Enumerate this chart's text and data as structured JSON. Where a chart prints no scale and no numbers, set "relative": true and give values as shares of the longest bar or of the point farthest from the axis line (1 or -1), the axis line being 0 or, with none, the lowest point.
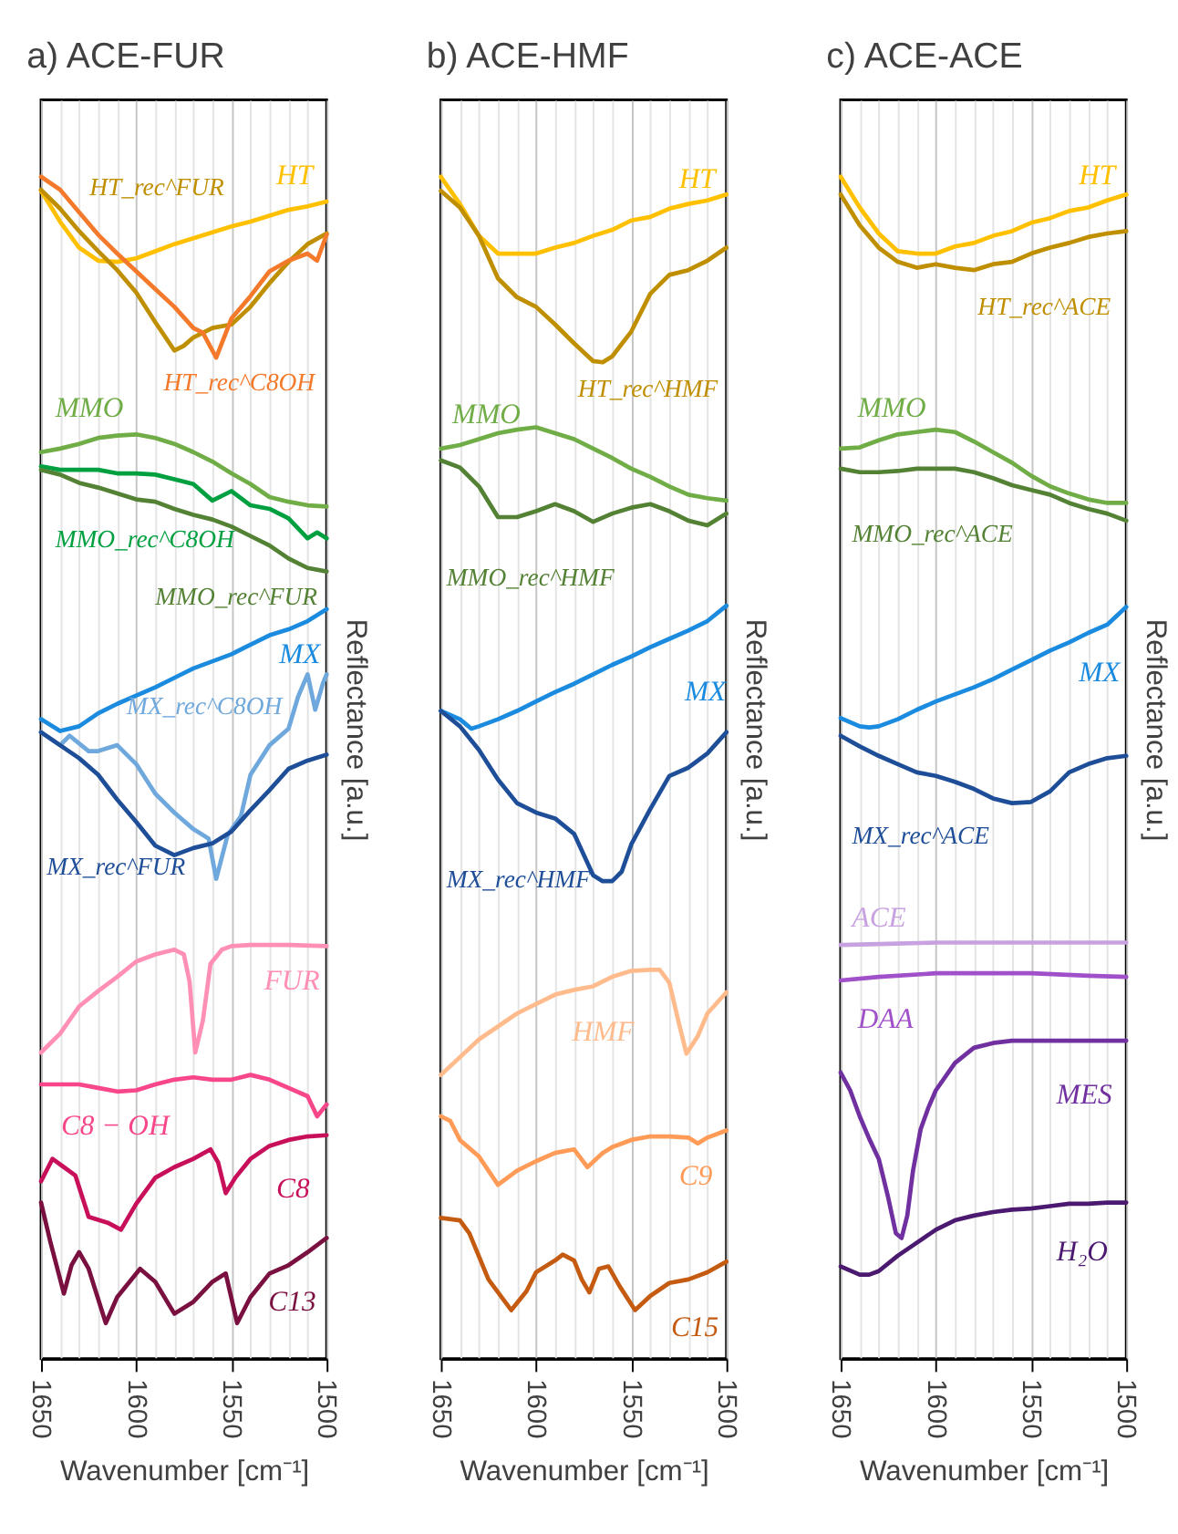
{
  "chart_data": [
    {
      "type": "line",
      "title": "a)  ACE-FUR",
      "xlabel": "Wavenumber [cm⁻¹]",
      "ylabel": "Reflectance [a.u.]",
      "relative": true,
      "xlim": [
        1650,
        1500
      ],
      "grid": "x",
      "xticks": [
        1650,
        {
          "value": 1640,
          "label": null
        },
        {
          "value": 1630,
          "label": null
        },
        {
          "value": 1620,
          "label": null
        },
        {
          "value": 1610,
          "label": null
        },
        1600,
        {
          "value": 1590,
          "label": null
        },
        {
          "value": 1580,
          "label": null
        },
        {
          "value": 1570,
          "label": null
        },
        {
          "value": 1560,
          "label": null
        },
        1550,
        {
          "value": 1540,
          "label": null
        },
        {
          "value": 1530,
          "label": null
        },
        {
          "value": 1520,
          "label": null
        },
        {
          "value": 1510,
          "label": null
        },
        1500
      ],
      "series": [
        {
          "name": "HT",
          "color": "#ffc000",
          "x": [
            1650,
            1640,
            1630,
            1620,
            1610,
            1600,
            1590,
            1580,
            1570,
            1560,
            1550,
            1540,
            1530,
            1520,
            1510,
            1500
          ],
          "values": [
            0.988,
            0.962,
            0.94,
            0.929,
            0.928,
            0.931,
            0.937,
            0.943,
            0.948,
            0.953,
            0.958,
            0.962,
            0.967,
            0.972,
            0.975,
            0.979
          ]
        },
        {
          "name": "HT_rec^FUR",
          "color": "#bf8f00",
          "x": [
            1650,
            1640,
            1630,
            1620,
            1610,
            1600,
            1590,
            1580,
            1575,
            1570,
            1560,
            1550,
            1540,
            1530,
            1520,
            1510,
            1500
          ],
          "values": [
            0.989,
            0.973,
            0.954,
            0.937,
            0.921,
            0.902,
            0.877,
            0.853,
            0.857,
            0.864,
            0.872,
            0.875,
            0.89,
            0.91,
            0.928,
            0.943,
            0.952
          ]
        },
        {
          "name": "HT_rec^C8OH",
          "color": "#f4792a",
          "x": [
            1650,
            1640,
            1630,
            1620,
            1610,
            1600,
            1590,
            1580,
            1570,
            1565,
            1558,
            1550,
            1540,
            1530,
            1520,
            1510,
            1505,
            1500
          ],
          "values": [
            1.0,
            0.989,
            0.97,
            0.951,
            0.935,
            0.92,
            0.905,
            0.89,
            0.872,
            0.868,
            0.847,
            0.88,
            0.899,
            0.92,
            0.929,
            0.935,
            0.929,
            0.951
          ]
        },
        {
          "name": "MMO",
          "color": "#70ad47",
          "x": [
            1650,
            1640,
            1630,
            1620,
            1610,
            1600,
            1590,
            1580,
            1570,
            1560,
            1550,
            1540,
            1530,
            1520,
            1510,
            1500
          ],
          "values": [
            0.767,
            0.77,
            0.774,
            0.779,
            0.781,
            0.782,
            0.779,
            0.774,
            0.767,
            0.759,
            0.749,
            0.74,
            0.729,
            0.725,
            0.722,
            0.721
          ]
        },
        {
          "name": "MMO_rec^C8OH",
          "color": "#00a040",
          "x": [
            1650,
            1640,
            1630,
            1620,
            1610,
            1600,
            1590,
            1580,
            1570,
            1560,
            1550,
            1540,
            1530,
            1520,
            1510,
            1505,
            1500
          ],
          "values": [
            0.755,
            0.752,
            0.752,
            0.752,
            0.749,
            0.749,
            0.748,
            0.744,
            0.74,
            0.726,
            0.734,
            0.722,
            0.719,
            0.711,
            0.694,
            0.699,
            0.694
          ]
        },
        {
          "name": "MMO_rec^FUR",
          "color": "#548235",
          "x": [
            1650,
            1640,
            1630,
            1620,
            1610,
            1600,
            1590,
            1580,
            1570,
            1560,
            1550,
            1540,
            1530,
            1520,
            1510,
            1500
          ],
          "values": [
            0.752,
            0.748,
            0.741,
            0.737,
            0.732,
            0.727,
            0.725,
            0.719,
            0.714,
            0.71,
            0.704,
            0.696,
            0.688,
            0.677,
            0.669,
            0.666
          ]
        },
        {
          "name": "MX",
          "color": "#1b8be0",
          "x": [
            1650,
            1640,
            1630,
            1620,
            1610,
            1600,
            1590,
            1580,
            1570,
            1560,
            1550,
            1540,
            1530,
            1520,
            1510,
            1500
          ],
          "values": [
            0.541,
            0.531,
            0.535,
            0.546,
            0.554,
            0.561,
            0.568,
            0.576,
            0.584,
            0.59,
            0.596,
            0.604,
            0.612,
            0.617,
            0.624,
            0.634
          ]
        },
        {
          "name": "MX_rec^C8OH",
          "color": "#6fa8dc",
          "x": [
            1650,
            1640,
            1635,
            1625,
            1620,
            1610,
            1600,
            1590,
            1580,
            1570,
            1562,
            1558,
            1552,
            1545,
            1540,
            1530,
            1520,
            1515,
            1510,
            1506,
            1502,
            1500
          ],
          "values": [
            0.53,
            0.519,
            0.527,
            0.514,
            0.514,
            0.519,
            0.503,
            0.478,
            0.462,
            0.448,
            0.44,
            0.406,
            0.443,
            0.459,
            0.494,
            0.519,
            0.533,
            0.56,
            0.579,
            0.549,
            0.571,
            0.579
          ]
        },
        {
          "name": "MX_rec^FUR",
          "color": "#1f4e99",
          "x": [
            1650,
            1640,
            1630,
            1620,
            1610,
            1600,
            1590,
            1580,
            1570,
            1560,
            1550,
            1540,
            1530,
            1520,
            1510,
            1500
          ],
          "values": [
            0.53,
            0.519,
            0.508,
            0.494,
            0.473,
            0.454,
            0.434,
            0.426,
            0.432,
            0.436,
            0.446,
            0.464,
            0.481,
            0.499,
            0.506,
            0.511
          ]
        },
        {
          "name": "FUR",
          "color": "#ff8fb5",
          "x": [
            1650,
            1640,
            1630,
            1620,
            1610,
            1600,
            1590,
            1580,
            1575,
            1572,
            1569,
            1565,
            1561,
            1555,
            1550,
            1540,
            1520,
            1500
          ],
          "values": [
            0.259,
            0.275,
            0.298,
            0.311,
            0.323,
            0.336,
            0.342,
            0.346,
            0.342,
            0.319,
            0.259,
            0.286,
            0.334,
            0.346,
            0.349,
            0.35,
            0.35,
            0.349
          ]
        },
        {
          "name": "C8 − OH",
          "color": "#f7468a",
          "x": [
            1650,
            1640,
            1630,
            1620,
            1610,
            1600,
            1590,
            1580,
            1570,
            1560,
            1550,
            1540,
            1530,
            1520,
            1510,
            1505,
            1500
          ],
          "values": [
            0.232,
            0.232,
            0.232,
            0.229,
            0.226,
            0.227,
            0.232,
            0.236,
            0.238,
            0.236,
            0.236,
            0.24,
            0.236,
            0.229,
            0.222,
            0.205,
            0.215
          ]
        },
        {
          "name": "C8",
          "color": "#c8105a",
          "x": [
            1650,
            1644,
            1638,
            1632,
            1625,
            1615,
            1608,
            1600,
            1590,
            1580,
            1570,
            1561,
            1557,
            1553,
            1548,
            1540,
            1530,
            1520,
            1510,
            1500
          ],
          "values": [
            0.15,
            0.169,
            0.162,
            0.155,
            0.12,
            0.115,
            0.109,
            0.131,
            0.153,
            0.162,
            0.169,
            0.177,
            0.166,
            0.14,
            0.153,
            0.169,
            0.18,
            0.185,
            0.188,
            0.189
          ]
        },
        {
          "name": "C13",
          "color": "#7a1040",
          "x": [
            1650,
            1645,
            1638,
            1634,
            1630,
            1625,
            1616,
            1610,
            1598,
            1590,
            1580,
            1570,
            1560,
            1553,
            1547,
            1540,
            1530,
            1520,
            1510,
            1500
          ],
          "values": [
            0.132,
            0.098,
            0.055,
            0.079,
            0.09,
            0.076,
            0.03,
            0.052,
            0.076,
            0.065,
            0.038,
            0.048,
            0.065,
            0.072,
            0.03,
            0.052,
            0.072,
            0.079,
            0.09,
            0.102
          ]
        }
      ]
    },
    {
      "type": "line",
      "title": "b)  ACE-HMF",
      "xlabel": "Wavenumber [cm⁻¹]",
      "ylabel": "Reflectance [a.u.]",
      "relative": true,
      "xlim": [
        1650,
        1500
      ],
      "grid": "x",
      "xticks": [
        1650,
        {
          "value": 1640,
          "label": null
        },
        {
          "value": 1630,
          "label": null
        },
        {
          "value": 1620,
          "label": null
        },
        {
          "value": 1610,
          "label": null
        },
        1600,
        {
          "value": 1590,
          "label": null
        },
        {
          "value": 1580,
          "label": null
        },
        {
          "value": 1570,
          "label": null
        },
        {
          "value": 1560,
          "label": null
        },
        1550,
        {
          "value": 1540,
          "label": null
        },
        {
          "value": 1530,
          "label": null
        },
        {
          "value": 1520,
          "label": null
        },
        {
          "value": 1510,
          "label": null
        },
        1500
      ],
      "series": [
        {
          "name": "HT",
          "color": "#ffc000",
          "x": [
            1650,
            1640,
            1630,
            1620,
            1610,
            1600,
            1590,
            1580,
            1570,
            1560,
            1550,
            1540,
            1530,
            1520,
            1510,
            1500
          ],
          "values": [
            1.0,
            0.977,
            0.95,
            0.935,
            0.935,
            0.935,
            0.94,
            0.944,
            0.95,
            0.955,
            0.963,
            0.966,
            0.973,
            0.977,
            0.98,
            0.985
          ]
        },
        {
          "name": "HT_rec^HMF",
          "color": "#bf8f00",
          "x": [
            1650,
            1640,
            1630,
            1620,
            1610,
            1600,
            1590,
            1580,
            1570,
            1565,
            1560,
            1550,
            1540,
            1530,
            1520,
            1510,
            1500
          ],
          "values": [
            0.988,
            0.974,
            0.95,
            0.914,
            0.898,
            0.89,
            0.875,
            0.859,
            0.844,
            0.843,
            0.848,
            0.869,
            0.901,
            0.917,
            0.921,
            0.929,
            0.94
          ]
        },
        {
          "name": "MMO",
          "color": "#70ad47",
          "x": [
            1650,
            1640,
            1630,
            1620,
            1610,
            1600,
            1590,
            1580,
            1570,
            1560,
            1550,
            1540,
            1530,
            1520,
            1510,
            1500
          ],
          "values": [
            0.77,
            0.773,
            0.778,
            0.783,
            0.786,
            0.788,
            0.783,
            0.778,
            0.77,
            0.762,
            0.753,
            0.746,
            0.738,
            0.731,
            0.728,
            0.726
          ]
        },
        {
          "name": "MMO_rec^HMF",
          "color": "#548235",
          "x": [
            1650,
            1640,
            1630,
            1620,
            1610,
            1600,
            1590,
            1580,
            1570,
            1560,
            1550,
            1540,
            1530,
            1520,
            1510,
            1500
          ],
          "values": [
            0.76,
            0.754,
            0.738,
            0.712,
            0.712,
            0.717,
            0.723,
            0.717,
            0.708,
            0.715,
            0.72,
            0.723,
            0.717,
            0.709,
            0.705,
            0.715
          ]
        },
        {
          "name": "MX",
          "color": "#1b8be0",
          "x": [
            1650,
            1640,
            1634,
            1630,
            1620,
            1610,
            1600,
            1590,
            1580,
            1570,
            1560,
            1550,
            1540,
            1530,
            1520,
            1510,
            1500
          ],
          "values": [
            0.548,
            0.541,
            0.533,
            0.535,
            0.541,
            0.548,
            0.556,
            0.564,
            0.571,
            0.579,
            0.587,
            0.594,
            0.602,
            0.609,
            0.616,
            0.624,
            0.637
          ]
        },
        {
          "name": "MX_rec^HMF",
          "color": "#1f4e99",
          "x": [
            1650,
            1640,
            1630,
            1620,
            1610,
            1600,
            1590,
            1580,
            1570,
            1565,
            1560,
            1555,
            1550,
            1540,
            1530,
            1520,
            1510,
            1500
          ],
          "values": [
            0.548,
            0.535,
            0.515,
            0.49,
            0.47,
            0.462,
            0.457,
            0.444,
            0.409,
            0.404,
            0.404,
            0.412,
            0.435,
            0.465,
            0.493,
            0.5,
            0.512,
            0.53
          ]
        },
        {
          "name": "HMF",
          "color": "#ffbb8c",
          "x": [
            1650,
            1640,
            1630,
            1620,
            1610,
            1600,
            1590,
            1580,
            1570,
            1560,
            1550,
            1540,
            1535,
            1530,
            1525,
            1521,
            1515,
            1510,
            1500
          ],
          "values": [
            0.24,
            0.255,
            0.27,
            0.281,
            0.292,
            0.3,
            0.308,
            0.312,
            0.315,
            0.323,
            0.328,
            0.329,
            0.329,
            0.318,
            0.284,
            0.258,
            0.273,
            0.292,
            0.31
          ]
        },
        {
          "name": "C9",
          "color": "#ff9b57",
          "x": [
            1650,
            1645,
            1640,
            1630,
            1620,
            1610,
            1600,
            1590,
            1580,
            1573,
            1565,
            1560,
            1550,
            1540,
            1530,
            1520,
            1515,
            1510,
            1500
          ],
          "values": [
            0.205,
            0.201,
            0.185,
            0.171,
            0.147,
            0.159,
            0.167,
            0.174,
            0.177,
            0.162,
            0.174,
            0.179,
            0.185,
            0.188,
            0.188,
            0.187,
            0.182,
            0.187,
            0.193
          ]
        },
        {
          "name": "C15",
          "color": "#c55a11",
          "x": [
            1650,
            1640,
            1635,
            1625,
            1613,
            1605,
            1600,
            1590,
            1586,
            1580,
            1576,
            1572,
            1567,
            1562,
            1556,
            1548,
            1540,
            1530,
            1520,
            1510,
            1500
          ],
          "values": [
            0.119,
            0.117,
            0.106,
            0.067,
            0.041,
            0.057,
            0.073,
            0.083,
            0.088,
            0.083,
            0.067,
            0.056,
            0.076,
            0.078,
            0.061,
            0.041,
            0.053,
            0.064,
            0.067,
            0.073,
            0.082
          ]
        }
      ]
    },
    {
      "type": "line",
      "title": "c)  ACE-ACE",
      "xlabel": "Wavenumber [cm⁻¹]",
      "ylabel": "Reflectance [a.u.]",
      "relative": true,
      "xlim": [
        1650,
        1500
      ],
      "grid": "x",
      "xticks": [
        1650,
        {
          "value": 1640,
          "label": null
        },
        {
          "value": 1630,
          "label": null
        },
        {
          "value": 1620,
          "label": null
        },
        {
          "value": 1610,
          "label": null
        },
        1600,
        {
          "value": 1590,
          "label": null
        },
        {
          "value": 1580,
          "label": null
        },
        {
          "value": 1570,
          "label": null
        },
        {
          "value": 1560,
          "label": null
        },
        1550,
        {
          "value": 1540,
          "label": null
        },
        {
          "value": 1530,
          "label": null
        },
        {
          "value": 1520,
          "label": null
        },
        {
          "value": 1510,
          "label": null
        },
        1500
      ],
      "series": [
        {
          "name": "HT",
          "color": "#ffc000",
          "x": [
            1650,
            1640,
            1630,
            1620,
            1610,
            1600,
            1590,
            1580,
            1570,
            1560,
            1550,
            1540,
            1530,
            1520,
            1510,
            1500
          ],
          "values": [
            1.0,
            0.974,
            0.952,
            0.937,
            0.935,
            0.935,
            0.941,
            0.944,
            0.95,
            0.954,
            0.961,
            0.965,
            0.971,
            0.974,
            0.98,
            0.985
          ]
        },
        {
          "name": "HT_rec^ACE",
          "color": "#bf8f00",
          "x": [
            1650,
            1640,
            1630,
            1620,
            1610,
            1600,
            1590,
            1580,
            1570,
            1560,
            1550,
            1540,
            1530,
            1520,
            1510,
            1500
          ],
          "values": [
            0.985,
            0.959,
            0.94,
            0.928,
            0.923,
            0.926,
            0.923,
            0.921,
            0.926,
            0.928,
            0.935,
            0.94,
            0.944,
            0.949,
            0.952,
            0.954
          ]
        },
        {
          "name": "MMO",
          "color": "#70ad47",
          "x": [
            1650,
            1640,
            1630,
            1620,
            1610,
            1600,
            1590,
            1580,
            1570,
            1560,
            1550,
            1540,
            1530,
            1520,
            1510,
            1500
          ],
          "values": [
            0.77,
            0.771,
            0.777,
            0.782,
            0.784,
            0.786,
            0.784,
            0.776,
            0.767,
            0.758,
            0.747,
            0.738,
            0.732,
            0.727,
            0.724,
            0.724
          ]
        },
        {
          "name": "MMO_rec^ACE",
          "color": "#548235",
          "x": [
            1650,
            1640,
            1630,
            1620,
            1610,
            1600,
            1590,
            1580,
            1570,
            1560,
            1550,
            1540,
            1530,
            1520,
            1510,
            1500
          ],
          "values": [
            0.753,
            0.75,
            0.75,
            0.751,
            0.753,
            0.753,
            0.753,
            0.75,
            0.745,
            0.739,
            0.735,
            0.731,
            0.724,
            0.719,
            0.715,
            0.709
          ]
        },
        {
          "name": "MX",
          "color": "#1b8be0",
          "x": [
            1650,
            1640,
            1635,
            1630,
            1620,
            1610,
            1600,
            1590,
            1580,
            1570,
            1560,
            1550,
            1540,
            1530,
            1520,
            1510,
            1500
          ],
          "values": [
            0.542,
            0.535,
            0.534,
            0.535,
            0.541,
            0.549,
            0.556,
            0.562,
            0.568,
            0.575,
            0.583,
            0.591,
            0.599,
            0.606,
            0.614,
            0.621,
            0.636
          ]
        },
        {
          "name": "MX_rec^ACE",
          "color": "#1f4e99",
          "x": [
            1650,
            1640,
            1630,
            1620,
            1610,
            1600,
            1590,
            1580,
            1570,
            1560,
            1550,
            1540,
            1530,
            1520,
            1510,
            1500
          ],
          "values": [
            0.527,
            0.518,
            0.51,
            0.503,
            0.496,
            0.493,
            0.488,
            0.482,
            0.474,
            0.47,
            0.471,
            0.48,
            0.496,
            0.503,
            0.508,
            0.51
          ]
        },
        {
          "name": "ACE",
          "color": "#c8a2e0",
          "x": [
            1650,
            1625,
            1600,
            1575,
            1550,
            1525,
            1500
          ],
          "values": [
            0.35,
            0.351,
            0.352,
            0.352,
            0.352,
            0.352,
            0.352
          ]
        },
        {
          "name": "DAA",
          "color": "#a050c8",
          "x": [
            1650,
            1630,
            1600,
            1550,
            1520,
            1500
          ],
          "values": [
            0.32,
            0.323,
            0.326,
            0.326,
            0.324,
            0.323
          ]
        },
        {
          "name": "MES",
          "color": "#7030a0",
          "x": [
            1650,
            1645,
            1640,
            1635,
            1630,
            1625,
            1621,
            1618,
            1615,
            1612,
            1608,
            1604,
            1600,
            1590,
            1580,
            1570,
            1560,
            1540,
            1520,
            1500
          ],
          "values": [
            0.242,
            0.227,
            0.205,
            0.186,
            0.169,
            0.136,
            0.106,
            0.102,
            0.121,
            0.159,
            0.194,
            0.212,
            0.227,
            0.25,
            0.263,
            0.267,
            0.269,
            0.269,
            0.269,
            0.269
          ]
        },
        {
          "name": "H₂O",
          "color": "#4b1a70",
          "x": [
            1650,
            1640,
            1635,
            1630,
            1620,
            1610,
            1600,
            1590,
            1580,
            1570,
            1560,
            1550,
            1540,
            1530,
            1520,
            1510,
            1500
          ],
          "values": [
            0.078,
            0.071,
            0.071,
            0.074,
            0.087,
            0.098,
            0.109,
            0.117,
            0.121,
            0.124,
            0.126,
            0.127,
            0.129,
            0.131,
            0.131,
            0.132,
            0.132
          ]
        }
      ]
    }
  ]
}
